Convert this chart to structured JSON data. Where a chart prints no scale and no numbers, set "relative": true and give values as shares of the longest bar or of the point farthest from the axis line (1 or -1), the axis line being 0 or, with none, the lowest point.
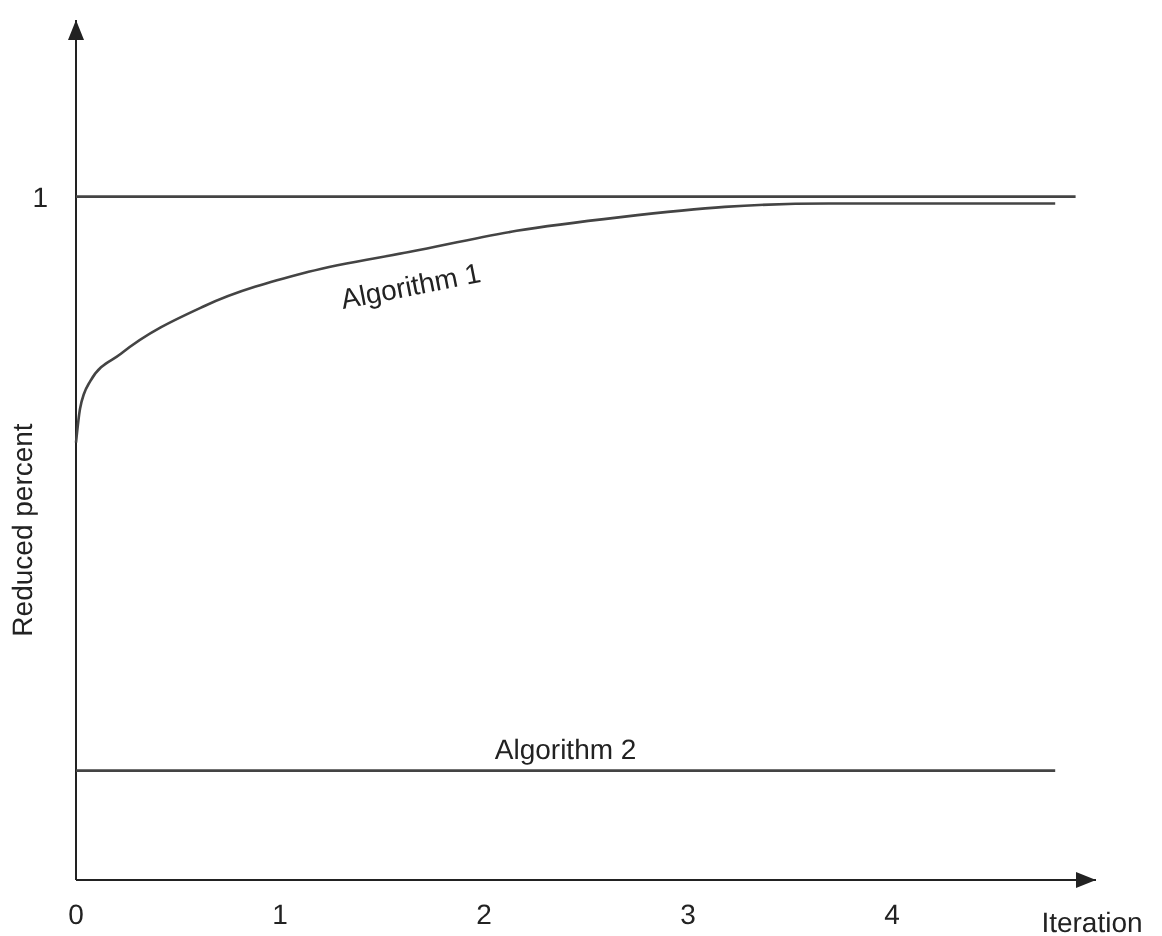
{
  "chart_data": {
    "type": "line",
    "xlabel": "Iteration",
    "ylabel": "Reduced percent",
    "xlim": [
      0,
      5
    ],
    "xticks": [
      0,
      1,
      2,
      3,
      4
    ],
    "relative": true,
    "annotations": [
      {
        "text": "1",
        "x": 0,
        "y": 1
      }
    ],
    "legend": false,
    "marker": "none",
    "line_style": "solid",
    "series": [
      {
        "color": "#444444",
        "x": [
          0,
          4.9
        ],
        "values": [
          1,
          1
        ]
      },
      {
        "name": "Algorithm 1",
        "color": "#444444",
        "x": [
          0,
          0.02,
          0.07,
          0.22,
          0.63,
          1.14,
          1.65,
          2.16,
          2.67,
          3.18,
          3.69,
          4.2,
          4.8
        ],
        "values": [
          0.64,
          0.69,
          0.73,
          0.77,
          0.84,
          0.89,
          0.92,
          0.95,
          0.97,
          0.985,
          0.99,
          0.99,
          0.99
        ]
      },
      {
        "name": "Algorithm 2",
        "color": "#444444",
        "x": [
          0,
          4.8
        ],
        "values": [
          0.16,
          0.16
        ]
      }
    ]
  }
}
